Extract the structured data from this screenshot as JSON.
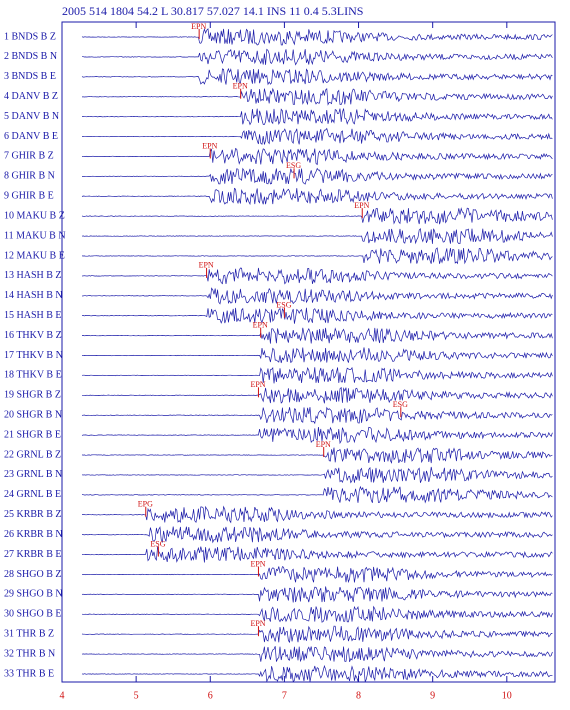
{
  "title": "2005 514 1804 54.2 L 30.817 57.027 14.1 INS 11 0.4 5.3LINS",
  "traces": [
    "1 BNDS B Z",
    "2 BNDS B N",
    "3 BNDS B E",
    "4 DANV B Z",
    "5 DANV B N",
    "6 DANV B E",
    "7 GHIR B Z",
    "8 GHIR B N",
    "9 GHIR B E",
    "10 MAKU B Z",
    "11 MAKU B N",
    "12 MAKU B E",
    "13 HASH B Z",
    "14 HASH B N",
    "15 HASH B E",
    "16 THKV B Z",
    "17 THKV B N",
    "18 THKV B E",
    "19 SHGR B Z",
    "20 SHGR B N",
    "21 SHGR B E",
    "22 GRNL B Z",
    "23 GRNL B N",
    "24 GRNL B E",
    "25 KRBR B Z",
    "26 KRBR B N",
    "27 KRBR B E",
    "28 SHGO B Z",
    "29 SHGO B N",
    "30 SHGO B E",
    "31 THR B Z",
    "32 THR B N",
    "33 THR B E"
  ],
  "picks": [
    {
      "trace": 0,
      "label": "EPN",
      "time": 5.85
    },
    {
      "trace": 3,
      "label": "EPN",
      "time": 6.41
    },
    {
      "trace": 6,
      "label": "EPN",
      "time": 6.0
    },
    {
      "trace": 7,
      "label": "ESG",
      "time": 7.13
    },
    {
      "trace": 9,
      "label": "EPN",
      "time": 8.05
    },
    {
      "trace": 12,
      "label": "EPN",
      "time": 5.95
    },
    {
      "trace": 14,
      "label": "ESG",
      "time": 7.0
    },
    {
      "trace": 15,
      "label": "EPN",
      "time": 6.68
    },
    {
      "trace": 18,
      "label": "EPN",
      "time": 6.65
    },
    {
      "trace": 19,
      "label": "ESG",
      "time": 8.57
    },
    {
      "trace": 21,
      "label": "EPN",
      "time": 7.53
    },
    {
      "trace": 24,
      "label": "EPG",
      "time": 5.13
    },
    {
      "trace": 26,
      "label": "ESG",
      "time": 5.3
    },
    {
      "trace": 27,
      "label": "EPN",
      "time": 6.65
    },
    {
      "trace": 30,
      "label": "EPN",
      "time": 6.65
    }
  ],
  "xlim": [
    4,
    10.65
  ],
  "xticks": [
    4,
    5,
    6,
    7,
    8,
    9,
    10
  ]
}
